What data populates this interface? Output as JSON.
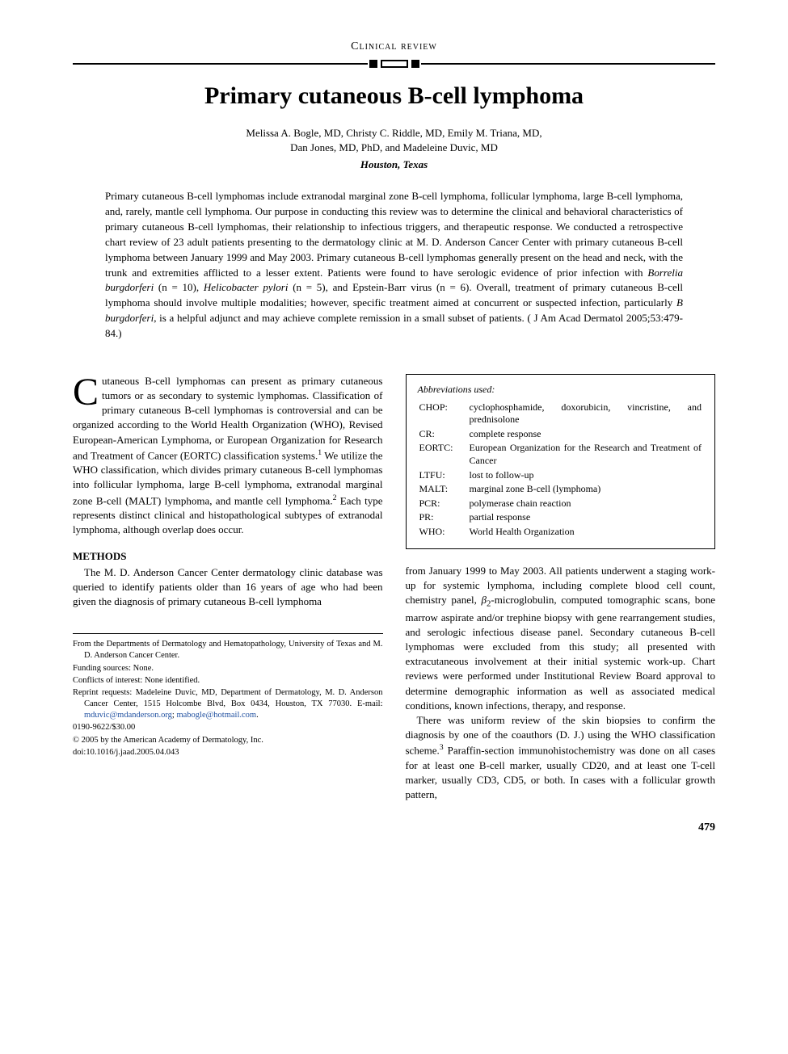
{
  "section_label": "Clinical review",
  "title": "Primary cutaneous B-cell lymphoma",
  "authors": "Melissa A. Bogle, MD, Christy C. Riddle, MD, Emily M. Triana, MD,\nDan Jones, MD, PhD, and Madeleine Duvic, MD",
  "location": "Houston, Texas",
  "abstract": "Primary cutaneous B-cell lymphomas include extranodal marginal zone B-cell lymphoma, follicular lymphoma, large B-cell lymphoma, and, rarely, mantle cell lymphoma. Our purpose in conducting this review was to determine the clinical and behavioral characteristics of primary cutaneous B-cell lymphomas, their relationship to infectious triggers, and therapeutic response. We conducted a retrospective chart review of 23 adult patients presenting to the dermatology clinic at M. D. Anderson Cancer Center with primary cutaneous B-cell lymphoma between January 1999 and May 2003. Primary cutaneous B-cell lymphomas generally present on the head and neck, with the trunk and extremities afflicted to a lesser extent. Patients were found to have serologic evidence of prior infection with ",
  "abstract_org1": "Borrelia burgdorferi",
  "abstract_mid1": " (n = 10), ",
  "abstract_org2": "Helicobacter pylori",
  "abstract_mid2": " (n = 5), and Epstein-Barr virus (n = 6). Overall, treatment of primary cutaneous B-cell lymphoma should involve multiple modalities; however, specific treatment aimed at concurrent or suspected infection, particularly ",
  "abstract_org3": "B burgdorferi",
  "abstract_end": ", is a helpful adjunct and may achieve complete remission in a small subset of patients. ( J Am Acad Dermatol 2005;53:479-84.)",
  "intro_dropcap": "C",
  "intro_rest": "utaneous B-cell lymphomas can present as primary cutaneous tumors or as secondary to systemic lymphomas. Classification of primary cutaneous B-cell lymphomas is controversial and can be organized according to the World Health Organization (WHO), Revised European-American Lymphoma, or European Organization for Research and Treatment of Cancer (EORTC) classification systems.",
  "intro_sup1": "1",
  "intro_after1": " We utilize the WHO classification, which divides primary cutaneous B-cell lymphomas into follicular lymphoma, large B-cell lymphoma, extranodal marginal zone B-cell (MALT) lymphoma, and mantle cell lymphoma.",
  "intro_sup2": "2",
  "intro_after2": " Each type represents distinct clinical and histopathological subtypes of extranodal lymphoma, although overlap does occur.",
  "methods_heading": "METHODS",
  "methods_p1": "The M. D. Anderson Cancer Center dermatology clinic database was queried to identify patients older than 16 years of age who had been given the diagnosis of primary cutaneous B-cell lymphoma",
  "abbrev_title": "Abbreviations used:",
  "abbrevs": [
    {
      "k": "CHOP:",
      "v": "cyclophosphamide, doxorubicin, vincristine, and prednisolone"
    },
    {
      "k": "CR:",
      "v": "complete response"
    },
    {
      "k": "EORTC:",
      "v": "European Organization for the Research and Treatment of Cancer"
    },
    {
      "k": "LTFU:",
      "v": "lost to follow-up"
    },
    {
      "k": "MALT:",
      "v": "marginal zone B-cell (lymphoma)"
    },
    {
      "k": "PCR:",
      "v": "polymerase chain reaction"
    },
    {
      "k": "PR:",
      "v": "partial response"
    },
    {
      "k": "WHO:",
      "v": "World Health Organization"
    }
  ],
  "col2_p1a": "from January 1999 to May 2003. All patients underwent a staging work-up for systemic lymphoma, including complete blood cell count, chemistry panel, ",
  "col2_p1_beta": "β",
  "col2_p1_sub": "2",
  "col2_p1b": "-microglobulin, computed tomographic scans, bone marrow aspirate and/or trephine biopsy with gene rearrangement studies, and serologic infectious disease panel. Secondary cutaneous B-cell lymphomas were excluded from this study; all presented with extracutaneous involvement at their initial systemic work-up. Chart reviews were performed under Institutional Review Board approval to determine demographic information as well as associated medical conditions, known infections, therapy, and response.",
  "col2_p2a": "There was uniform review of the skin biopsies to confirm the diagnosis by one of the coauthors (D. J.) using the WHO classification scheme.",
  "col2_sup3": "3",
  "col2_p2b": " Paraffin-section immunohistochemistry was done on all cases for at least one B-cell marker, usually CD20, and at least one T-cell marker, usually CD3, CD5, or both. In cases with a follicular growth pattern,",
  "footnotes": {
    "from": "From the Departments of Dermatology and Hematopathology, University of Texas and M. D. Anderson Cancer Center.",
    "funding": "Funding sources: None.",
    "conflicts": "Conflicts of interest: None identified.",
    "reprint_a": "Reprint requests: Madeleine Duvic, MD, Department of Dermatology, M. D. Anderson Cancer Center, 1515 Holcombe Blvd, Box 0434, Houston, TX 77030. E-mail: ",
    "email1": "mduvic@mdanderson.org",
    "reprint_sep": "; ",
    "email2": "mabogle@hotmail.com",
    "reprint_end": ".",
    "issn": "0190-9622/$30.00",
    "copyright": "© 2005 by the American Academy of Dermatology, Inc.",
    "doi": "doi:10.1016/j.jaad.2005.04.043"
  },
  "page_number": "479",
  "colors": {
    "text": "#000000",
    "link": "#2050a0",
    "background": "#ffffff"
  }
}
